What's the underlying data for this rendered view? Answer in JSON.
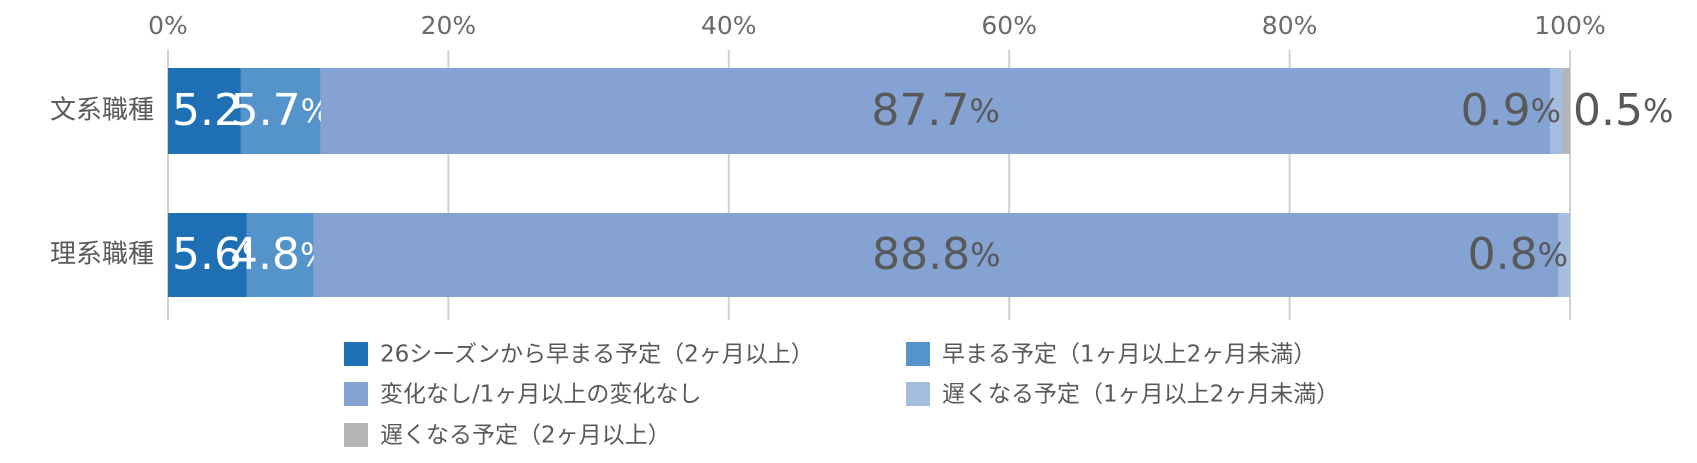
{
  "chart_data": {
    "type": "stacked-bar-horizontal",
    "categories": [
      "文系職種",
      "理系職種"
    ],
    "series": [
      {
        "name": "26シーズンから早まる予定（2ヶ月以上）",
        "color": "#1f6fb4",
        "values": [
          5.2,
          5.6
        ],
        "value_labels": [
          "5.2%",
          "5.6%"
        ]
      },
      {
        "name": "早まる予定（1ヶ月以上2ヶ月未満）",
        "color": "#5593cb",
        "values": [
          5.7,
          4.8
        ],
        "value_labels": [
          "5.7%",
          "4.8%"
        ]
      },
      {
        "name": "変化なし/1ヶ月以上の変化なし",
        "color": "#84a2d2",
        "values": [
          87.7,
          88.8
        ],
        "value_labels": [
          "87.7%",
          "88.8%"
        ]
      },
      {
        "name": "遅くなる予定（1ヶ月以上2ヶ月未満）",
        "color": "#a5bee0",
        "values": [
          0.9,
          0.8
        ],
        "value_labels": [
          "0.9%",
          "0.8%"
        ]
      },
      {
        "name": "遅くなる予定（2ヶ月以上）",
        "color": "#b5b5b5",
        "values": [
          0.5,
          null
        ],
        "value_labels": [
          "0.5%",
          null
        ]
      }
    ],
    "xlim": [
      0,
      100
    ],
    "xticks": [
      {
        "value": 0,
        "label": "0%"
      },
      {
        "value": 20,
        "label": "20%"
      },
      {
        "value": 40,
        "label": "40%"
      },
      {
        "value": 60,
        "label": "60%"
      },
      {
        "value": 80,
        "label": "80%"
      },
      {
        "value": 100,
        "label": "100%"
      }
    ],
    "grid": true
  }
}
